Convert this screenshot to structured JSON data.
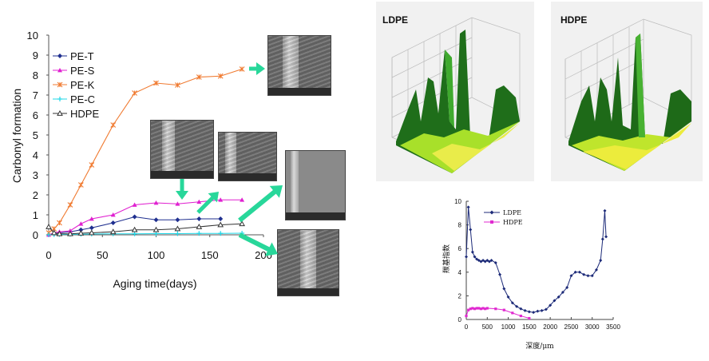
{
  "chart_data": [
    {
      "type": "line",
      "title": "",
      "xlabel": "Aging time(days)",
      "ylabel": "Carbonyl formation",
      "xlim": [
        0,
        200
      ],
      "ylim": [
        0,
        10
      ],
      "xticks": [
        "0",
        "50",
        "100",
        "150",
        "200"
      ],
      "yticks": [
        "0",
        "1",
        "2",
        "3",
        "4",
        "5",
        "6",
        "7",
        "8",
        "9",
        "10"
      ],
      "legend_position": "top-left",
      "series": [
        {
          "name": "PE-T",
          "color": "#1f2f8f",
          "marker": "diamond",
          "x": [
            0,
            5,
            10,
            20,
            30,
            40,
            60,
            80,
            100,
            120,
            140,
            160
          ],
          "y": [
            0,
            0.05,
            0.1,
            0.15,
            0.25,
            0.35,
            0.6,
            0.9,
            0.75,
            0.75,
            0.8,
            0.8
          ]
        },
        {
          "name": "PE-S",
          "color": "#e020d0",
          "marker": "triangle",
          "x": [
            0,
            5,
            10,
            20,
            30,
            40,
            60,
            80,
            100,
            120,
            140,
            160,
            180
          ],
          "y": [
            0,
            0.1,
            0.15,
            0.2,
            0.55,
            0.8,
            1.0,
            1.5,
            1.6,
            1.55,
            1.65,
            1.75,
            1.75
          ]
        },
        {
          "name": "PE-K",
          "color": "#f07a30",
          "marker": "star",
          "x": [
            0,
            5,
            10,
            20,
            30,
            40,
            60,
            80,
            100,
            120,
            140,
            160,
            180
          ],
          "y": [
            0.1,
            0.3,
            0.6,
            1.5,
            2.5,
            3.5,
            5.5,
            7.1,
            7.6,
            7.5,
            7.9,
            7.95,
            8.3
          ]
        },
        {
          "name": "PE-C",
          "color": "#20d8e8",
          "marker": "plus",
          "x": [
            0,
            5,
            10,
            20,
            30,
            40,
            60,
            80,
            100,
            120,
            140,
            160,
            180
          ],
          "y": [
            0,
            0.01,
            0.02,
            0.03,
            0.03,
            0.04,
            0.05,
            0.05,
            0.06,
            0.06,
            0.07,
            0.07,
            0.08
          ]
        },
        {
          "name": "HDPE",
          "color": "#333333",
          "marker": "triangle-open",
          "x": [
            0,
            5,
            10,
            20,
            30,
            40,
            60,
            80,
            100,
            120,
            140,
            160,
            180
          ],
          "y": [
            0.4,
            0.1,
            0.05,
            0.05,
            0.08,
            0.1,
            0.15,
            0.25,
            0.25,
            0.3,
            0.4,
            0.5,
            0.55
          ]
        }
      ]
    },
    {
      "type": "line",
      "title": "",
      "xlabel": "深度/μm",
      "ylabel": "羰基指数",
      "xlim": [
        0,
        3500
      ],
      "ylim": [
        0,
        10
      ],
      "xticks": [
        "0",
        "500",
        "1000",
        "1500",
        "2000",
        "2500",
        "3000",
        "3500"
      ],
      "yticks": [
        "0",
        "2",
        "4",
        "6",
        "8",
        "10"
      ],
      "legend_position": "top-left",
      "series": [
        {
          "name": "LDPE",
          "color": "#1c2a78",
          "marker": "diamond",
          "x": [
            0,
            50,
            100,
            150,
            200,
            250,
            300,
            350,
            400,
            450,
            500,
            550,
            600,
            700,
            800,
            900,
            1000,
            1100,
            1200,
            1300,
            1400,
            1500,
            1600,
            1700,
            1800,
            1900,
            2000,
            2100,
            2200,
            2300,
            2400,
            2500,
            2600,
            2700,
            2800,
            2900,
            3000,
            3100,
            3200,
            3250,
            3300,
            3330
          ],
          "y": [
            5.3,
            9.5,
            7.6,
            5.7,
            5.3,
            5.1,
            5.0,
            4.9,
            5.0,
            4.9,
            5.0,
            4.9,
            5.0,
            4.8,
            3.8,
            2.6,
            1.9,
            1.4,
            1.1,
            0.9,
            0.75,
            0.65,
            0.6,
            0.7,
            0.75,
            0.85,
            1.2,
            1.6,
            1.9,
            2.3,
            2.7,
            3.7,
            4.0,
            4.0,
            3.8,
            3.7,
            3.7,
            4.2,
            5.0,
            6.8,
            9.2,
            7.0
          ]
        },
        {
          "name": "HDPE",
          "color": "#e02ad0",
          "marker": "square",
          "x": [
            0,
            50,
            100,
            150,
            200,
            250,
            300,
            350,
            400,
            450,
            500,
            700,
            900,
            1100,
            1300,
            1500
          ],
          "y": [
            0.3,
            0.8,
            0.9,
            0.95,
            0.9,
            0.95,
            0.95,
            0.9,
            0.95,
            0.9,
            0.95,
            0.9,
            0.8,
            0.55,
            0.3,
            0.1
          ]
        }
      ]
    }
  ],
  "surface_plots": [
    {
      "label": "LDPE"
    },
    {
      "label": "HDPE"
    }
  ],
  "sem_images": [
    {
      "name": "sem-image-pe-k"
    },
    {
      "name": "sem-image-pe-s-1"
    },
    {
      "name": "sem-image-pe-s-2"
    },
    {
      "name": "sem-image-pe-c"
    },
    {
      "name": "sem-image-hdpe"
    }
  ],
  "arrow_color": "#28d79a"
}
